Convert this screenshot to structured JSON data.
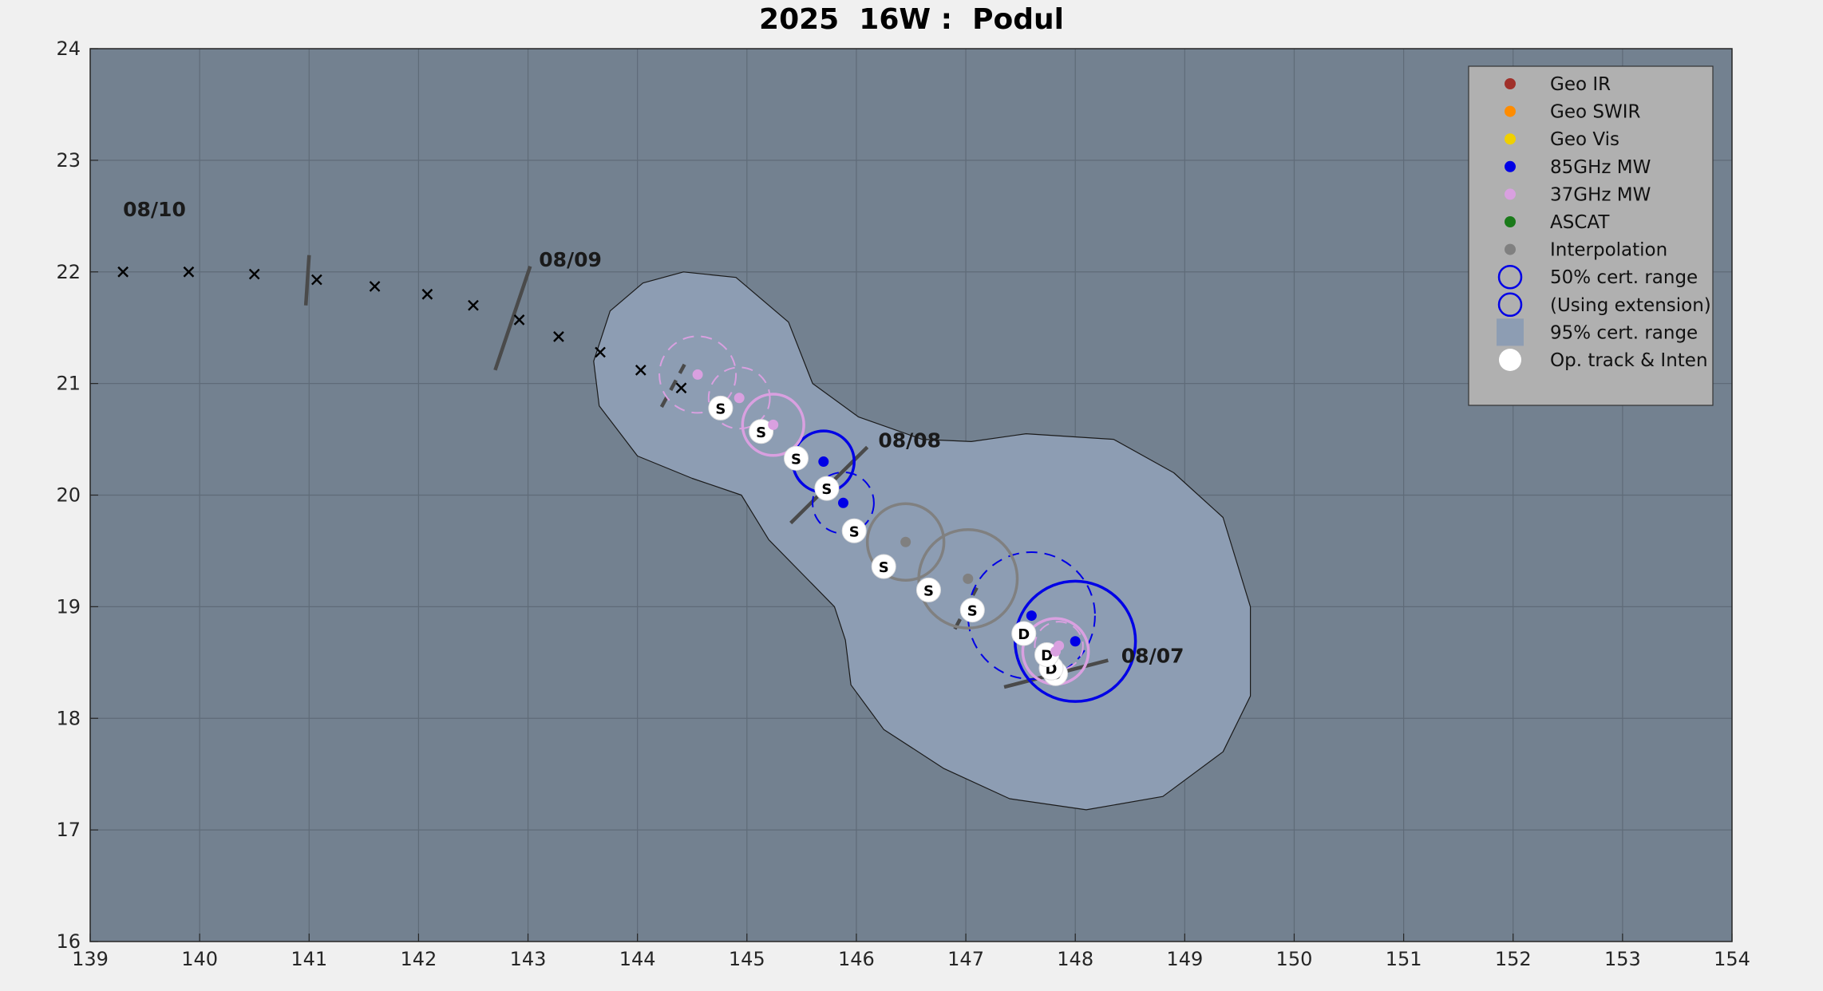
{
  "title": "2025  16W :  Podul",
  "colors": {
    "figure_bg": "#f0f0f0",
    "axes_bg": "#738190",
    "grid": "#5f6b78",
    "cone_fill": "#8d9db3",
    "cone_edge": "#1a1a1a",
    "geo_ir": "#a0302a",
    "geo_swir": "#ff8c00",
    "geo_vis": "#f0d000",
    "mw85": "#0000e6",
    "mw37": "#d9a0e0",
    "ascat": "#1a7a1a",
    "interp": "#808080",
    "legend_bg": "#b0b0b0",
    "dark_line": "#4a4a4a"
  },
  "legend": {
    "placement": "top-right",
    "items": [
      {
        "label": "Geo IR",
        "symbol": "dot",
        "color": "#a0302a"
      },
      {
        "label": "Geo SWIR",
        "symbol": "dot",
        "color": "#ff8c00"
      },
      {
        "label": "Geo Vis",
        "symbol": "dot",
        "color": "#f0d000"
      },
      {
        "label": "85GHz MW",
        "symbol": "dot",
        "color": "#0000e6"
      },
      {
        "label": "37GHz MW",
        "symbol": "dot",
        "color": "#d9a0e0"
      },
      {
        "label": "ASCAT",
        "symbol": "dot",
        "color": "#1a7a1a"
      },
      {
        "label": "Interpolation",
        "symbol": "dot",
        "color": "#808080"
      },
      {
        "label": "50% cert. range",
        "symbol": "ring",
        "color": "#0000e6"
      },
      {
        "label": "(Using extension)",
        "symbol": "ring",
        "color": "#0000e6"
      },
      {
        "label": "95% cert. range",
        "symbol": "square",
        "color": "#8d9db3"
      },
      {
        "label": "Op. track & Inten",
        "symbol": "whitedot",
        "color": "#ffffff"
      }
    ]
  },
  "chart_data": {
    "type": "scatter",
    "xlim": [
      139,
      154
    ],
    "ylim": [
      16,
      24
    ],
    "xticks": [
      139,
      140,
      141,
      142,
      143,
      144,
      145,
      146,
      147,
      148,
      149,
      150,
      151,
      152,
      153,
      154
    ],
    "yticks": [
      16,
      17,
      18,
      19,
      20,
      21,
      22,
      23,
      24
    ],
    "grid": true,
    "forecast_track": [
      {
        "x": 139.3,
        "y": 22.0
      },
      {
        "x": 139.9,
        "y": 22.0
      },
      {
        "x": 140.5,
        "y": 21.98
      },
      {
        "x": 141.07,
        "y": 21.93
      },
      {
        "x": 141.6,
        "y": 21.87
      },
      {
        "x": 142.08,
        "y": 21.8
      },
      {
        "x": 142.5,
        "y": 21.7
      },
      {
        "x": 142.92,
        "y": 21.57
      },
      {
        "x": 143.28,
        "y": 21.42
      },
      {
        "x": 143.66,
        "y": 21.28
      },
      {
        "x": 144.03,
        "y": 21.12
      },
      {
        "x": 144.4,
        "y": 20.96
      }
    ],
    "op_track": [
      {
        "x": 147.82,
        "y": 18.4,
        "label": "D"
      },
      {
        "x": 147.78,
        "y": 18.45,
        "label": "D"
      },
      {
        "x": 147.74,
        "y": 18.57,
        "label": "D"
      },
      {
        "x": 147.53,
        "y": 18.76,
        "label": "D"
      },
      {
        "x": 147.06,
        "y": 18.97,
        "label": "S"
      },
      {
        "x": 146.66,
        "y": 19.15,
        "label": "S"
      },
      {
        "x": 146.25,
        "y": 19.36,
        "label": "S"
      },
      {
        "x": 145.98,
        "y": 19.68,
        "label": "S"
      },
      {
        "x": 145.73,
        "y": 20.06,
        "label": "S"
      },
      {
        "x": 145.45,
        "y": 20.33,
        "label": "S"
      },
      {
        "x": 145.13,
        "y": 20.57,
        "label": "S"
      },
      {
        "x": 144.76,
        "y": 20.78,
        "label": "S"
      }
    ],
    "fixes": [
      {
        "x": 148.0,
        "y": 18.69,
        "type": "85GHz MW",
        "ring_r": 0.55,
        "dashed": false
      },
      {
        "x": 147.6,
        "y": 18.92,
        "type": "85GHz MW",
        "ring_r": 0.58,
        "dashed": true
      },
      {
        "x": 147.82,
        "y": 18.6,
        "type": "37GHz MW",
        "ring_r": 0.3,
        "dashed": false
      },
      {
        "x": 147.85,
        "y": 18.65,
        "type": "37GHz MW",
        "ring_r": 0.22,
        "dashed": true
      },
      {
        "x": 147.02,
        "y": 19.25,
        "type": "Interpolation",
        "ring_r": 0.45,
        "dashed": false
      },
      {
        "x": 146.45,
        "y": 19.58,
        "type": "Interpolation",
        "ring_r": 0.35,
        "dashed": false
      },
      {
        "x": 145.88,
        "y": 19.93,
        "type": "85GHz MW",
        "ring_r": 0.28,
        "dashed": true
      },
      {
        "x": 145.7,
        "y": 20.3,
        "type": "85GHz MW",
        "ring_r": 0.28,
        "dashed": false
      },
      {
        "x": 145.24,
        "y": 20.63,
        "type": "37GHz MW",
        "ring_r": 0.28,
        "dashed": false
      },
      {
        "x": 144.93,
        "y": 20.87,
        "type": "37GHz MW",
        "ring_r": 0.28,
        "dashed": true
      },
      {
        "x": 144.55,
        "y": 21.08,
        "type": "37GHz MW",
        "ring_r": 0.35,
        "dashed": true
      }
    ],
    "cone_95": [
      [
        144.42,
        22.0
      ],
      [
        144.9,
        21.95
      ],
      [
        145.38,
        21.55
      ],
      [
        145.6,
        21.0
      ],
      [
        146.02,
        20.7
      ],
      [
        146.6,
        20.5
      ],
      [
        147.05,
        20.48
      ],
      [
        147.55,
        20.55
      ],
      [
        148.35,
        20.5
      ],
      [
        148.9,
        20.2
      ],
      [
        149.35,
        19.8
      ],
      [
        149.6,
        19.0
      ],
      [
        149.6,
        18.2
      ],
      [
        149.35,
        17.7
      ],
      [
        148.8,
        17.3
      ],
      [
        148.1,
        17.18
      ],
      [
        147.4,
        17.28
      ],
      [
        146.8,
        17.55
      ],
      [
        146.25,
        17.9
      ],
      [
        145.95,
        18.3
      ],
      [
        145.9,
        18.7
      ],
      [
        145.8,
        19.0
      ],
      [
        145.2,
        19.6
      ],
      [
        144.95,
        20.0
      ],
      [
        144.5,
        20.15
      ],
      [
        144.0,
        20.35
      ],
      [
        143.65,
        20.8
      ],
      [
        143.6,
        21.2
      ],
      [
        143.75,
        21.65
      ],
      [
        144.05,
        21.9
      ]
    ],
    "date_labels": [
      {
        "text": "08/07",
        "x": 148.42,
        "y": 18.5
      },
      {
        "text": "08/08",
        "x": 146.2,
        "y": 20.43
      },
      {
        "text": "08/09",
        "x": 143.1,
        "y": 22.05
      },
      {
        "text": "08/10",
        "x": 139.3,
        "y": 22.5
      }
    ],
    "day_ticks": [
      {
        "x1": 147.35,
        "y1": 18.28,
        "x2": 148.3,
        "y2": 18.52
      },
      {
        "x1": 145.4,
        "y1": 19.75,
        "x2": 146.1,
        "y2": 20.43
      },
      {
        "x1": 142.7,
        "y1": 21.12,
        "x2": 143.02,
        "y2": 22.05
      },
      {
        "x1": 140.97,
        "y1": 21.7,
        "x2": 141.0,
        "y2": 22.15
      }
    ],
    "minor_ticks": [
      {
        "x1": 146.9,
        "y1": 18.8,
        "x2": 147.1,
        "y2": 19.17
      },
      {
        "x1": 144.22,
        "y1": 20.79,
        "x2": 144.43,
        "y2": 21.17
      }
    ]
  }
}
